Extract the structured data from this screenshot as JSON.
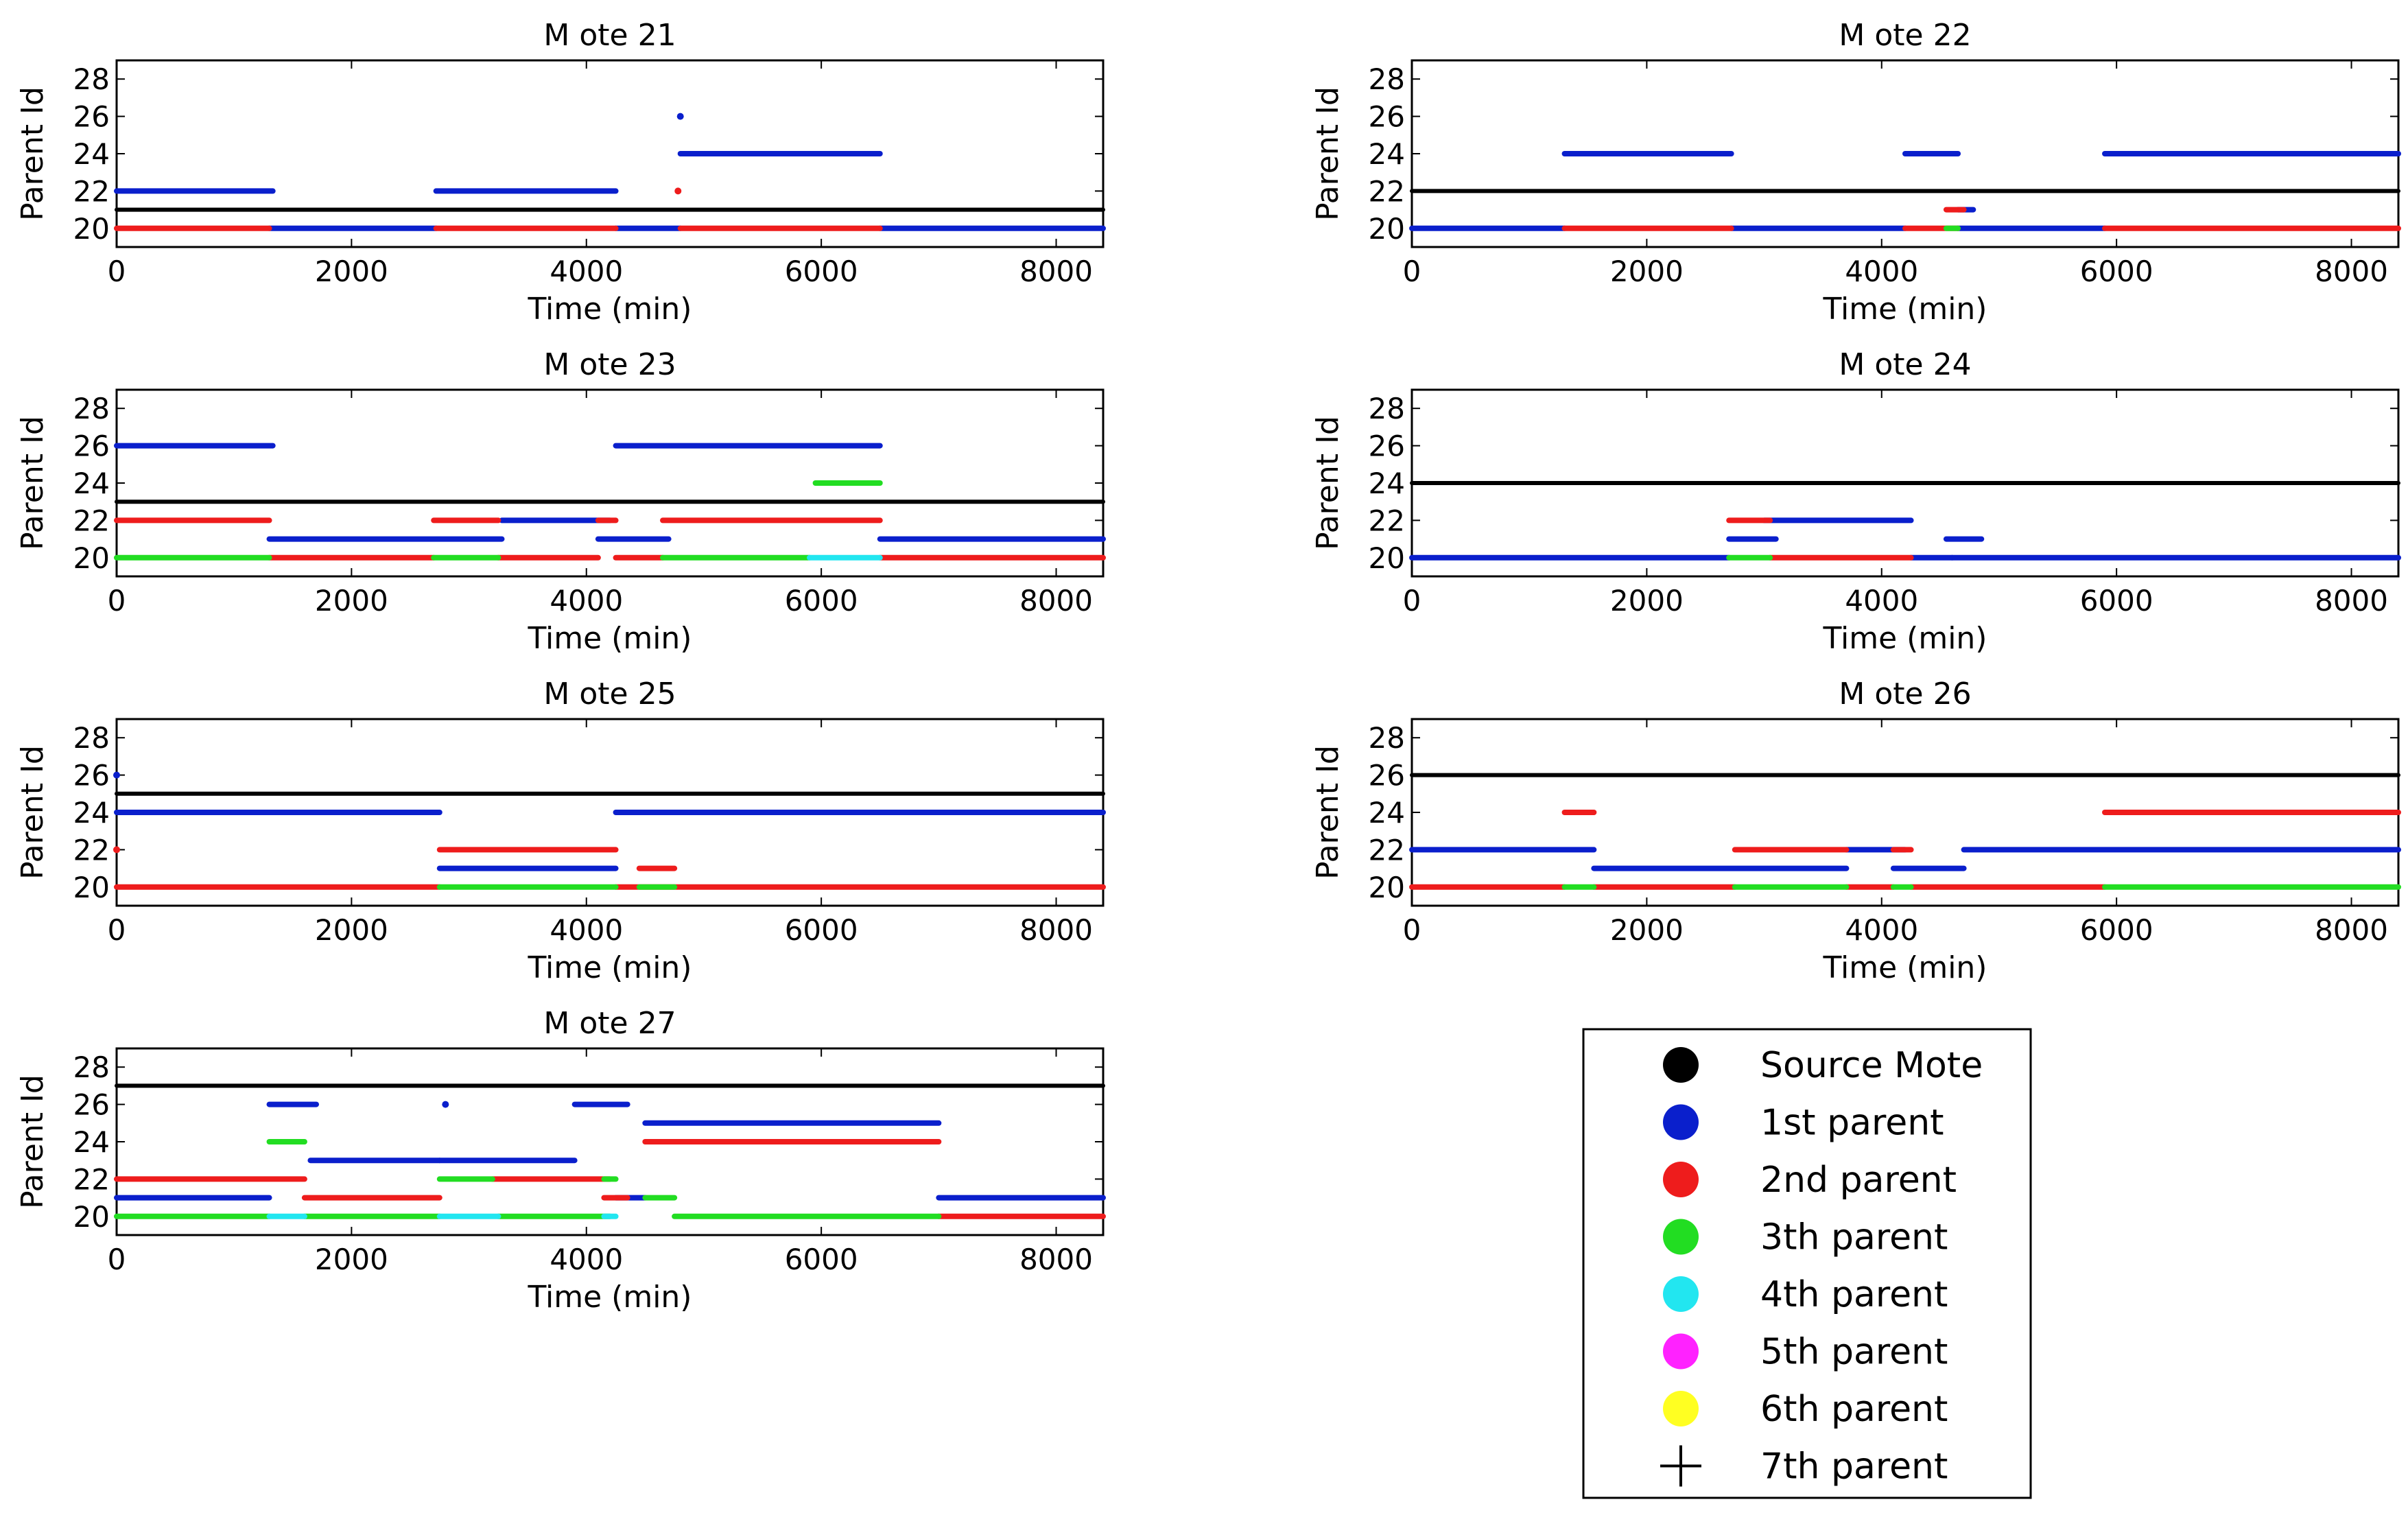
{
  "colors": {
    "source_mote": "#000000",
    "parent_1": "#0a1fcc",
    "parent_2": "#ee1c1c",
    "parent_3": "#22dd22",
    "parent_4": "#22e6f0",
    "parent_5": "#ff22ff",
    "parent_6": "#ffff22",
    "parent_7": "#000000"
  },
  "legend": {
    "items": [
      {
        "label": "Source Mote",
        "marker": "dot",
        "color_key": "source_mote"
      },
      {
        "label": "1st parent",
        "marker": "dot",
        "color_key": "parent_1"
      },
      {
        "label": "2nd parent",
        "marker": "dot",
        "color_key": "parent_2"
      },
      {
        "label": "3th parent",
        "marker": "dot",
        "color_key": "parent_3"
      },
      {
        "label": "4th parent",
        "marker": "dot",
        "color_key": "parent_4"
      },
      {
        "label": "5th parent",
        "marker": "dot",
        "color_key": "parent_5"
      },
      {
        "label": "6th parent",
        "marker": "dot",
        "color_key": "parent_6"
      },
      {
        "label": "7th parent",
        "marker": "plus",
        "color_key": "parent_7"
      }
    ]
  },
  "chart_data": [
    {
      "type": "scatter",
      "title": "M ote 21",
      "xlabel": "Time (min)",
      "ylabel": "Parent Id",
      "xlim": [
        0,
        8400
      ],
      "ylim": [
        19,
        29
      ],
      "xticks": [
        0,
        2000,
        4000,
        6000,
        8000
      ],
      "yticks": [
        20,
        22,
        24,
        26,
        28
      ],
      "source_mote": 21,
      "series": [
        {
          "name": "Source Mote",
          "color_key": "source_mote",
          "segments": [
            [
              0,
              8400,
              21
            ]
          ]
        },
        {
          "name": "1st parent",
          "color_key": "parent_1",
          "segments": [
            [
              0,
              1330,
              22
            ],
            [
              1300,
              2720,
              20
            ],
            [
              2720,
              4250,
              22
            ],
            [
              4250,
              4800,
              20
            ],
            [
              4800,
              6500,
              24
            ],
            [
              6500,
              8400,
              20
            ]
          ],
          "points": [
            [
              4800,
              26
            ]
          ]
        },
        {
          "name": "2nd parent",
          "color_key": "parent_2",
          "segments": [
            [
              0,
              1300,
              20
            ],
            [
              2720,
              4250,
              20
            ],
            [
              4800,
              6500,
              20
            ]
          ],
          "points": [
            [
              4780,
              22
            ]
          ]
        }
      ]
    },
    {
      "type": "scatter",
      "title": "M ote 22",
      "xlabel": "Time (min)",
      "ylabel": "Parent Id",
      "xlim": [
        0,
        8400
      ],
      "ylim": [
        19,
        29
      ],
      "xticks": [
        0,
        2000,
        4000,
        6000,
        8000
      ],
      "yticks": [
        20,
        22,
        24,
        26,
        28
      ],
      "source_mote": 22,
      "series": [
        {
          "name": "Source Mote",
          "color_key": "source_mote",
          "segments": [
            [
              0,
              8400,
              22
            ]
          ]
        },
        {
          "name": "1st parent",
          "color_key": "parent_1",
          "segments": [
            [
              0,
              1300,
              20
            ],
            [
              1300,
              2720,
              24
            ],
            [
              2720,
              4200,
              20
            ],
            [
              4200,
              4650,
              24
            ],
            [
              4650,
              4780,
              21
            ],
            [
              4650,
              5900,
              20
            ],
            [
              5900,
              8400,
              24
            ]
          ]
        },
        {
          "name": "2nd parent",
          "color_key": "parent_2",
          "segments": [
            [
              1300,
              2720,
              20
            ],
            [
              4200,
              4650,
              20
            ],
            [
              4550,
              4700,
              21
            ],
            [
              5900,
              8400,
              20
            ]
          ]
        },
        {
          "name": "3th parent",
          "color_key": "parent_3",
          "segments": [
            [
              4550,
              4650,
              20
            ]
          ]
        }
      ]
    },
    {
      "type": "scatter",
      "title": "M ote 23",
      "xlabel": "Time (min)",
      "ylabel": "Parent Id",
      "xlim": [
        0,
        8400
      ],
      "ylim": [
        19,
        29
      ],
      "xticks": [
        0,
        2000,
        4000,
        6000,
        8000
      ],
      "yticks": [
        20,
        22,
        24,
        26,
        28
      ],
      "source_mote": 23,
      "series": [
        {
          "name": "Source Mote",
          "color_key": "source_mote",
          "segments": [
            [
              0,
              8400,
              23
            ]
          ]
        },
        {
          "name": "1st parent",
          "color_key": "parent_1",
          "segments": [
            [
              0,
              1330,
              26
            ],
            [
              1300,
              3280,
              21
            ],
            [
              3280,
              4200,
              22
            ],
            [
              4100,
              4700,
              21
            ],
            [
              4250,
              6500,
              26
            ],
            [
              6500,
              8400,
              21
            ]
          ]
        },
        {
          "name": "2nd parent",
          "color_key": "parent_2",
          "segments": [
            [
              0,
              1300,
              22
            ],
            [
              1300,
              2700,
              20
            ],
            [
              2700,
              3250,
              22
            ],
            [
              3250,
              4100,
              20
            ],
            [
              4100,
              4250,
              22
            ],
            [
              4250,
              4650,
              20
            ],
            [
              4650,
              6500,
              22
            ],
            [
              6500,
              8400,
              20
            ]
          ]
        },
        {
          "name": "3th parent",
          "color_key": "parent_3",
          "segments": [
            [
              0,
              1300,
              20
            ],
            [
              2700,
              3250,
              20
            ],
            [
              4650,
              5900,
              20
            ],
            [
              5950,
              6500,
              24
            ]
          ]
        },
        {
          "name": "4th parent",
          "color_key": "parent_4",
          "segments": [
            [
              5900,
              6500,
              20
            ]
          ]
        }
      ]
    },
    {
      "type": "scatter",
      "title": "M ote 24",
      "xlabel": "Time (min)",
      "ylabel": "Parent Id",
      "xlim": [
        0,
        8400
      ],
      "ylim": [
        19,
        29
      ],
      "xticks": [
        0,
        2000,
        4000,
        6000,
        8000
      ],
      "yticks": [
        20,
        22,
        24,
        26,
        28
      ],
      "source_mote": 24,
      "series": [
        {
          "name": "Source Mote",
          "color_key": "source_mote",
          "segments": [
            [
              0,
              8400,
              24
            ]
          ]
        },
        {
          "name": "1st parent",
          "color_key": "parent_1",
          "segments": [
            [
              0,
              2700,
              20
            ],
            [
              2700,
              3100,
              21
            ],
            [
              3000,
              4250,
              22
            ],
            [
              4250,
              4600,
              20
            ],
            [
              4550,
              4850,
              21
            ],
            [
              4600,
              8400,
              20
            ]
          ]
        },
        {
          "name": "2nd parent",
          "color_key": "parent_2",
          "segments": [
            [
              2700,
              3050,
              22
            ],
            [
              3050,
              4250,
              20
            ]
          ]
        },
        {
          "name": "3th parent",
          "color_key": "parent_3",
          "segments": [
            [
              2700,
              3050,
              20
            ]
          ]
        }
      ]
    },
    {
      "type": "scatter",
      "title": "M ote 25",
      "xlabel": "Time (min)",
      "ylabel": "Parent Id",
      "xlim": [
        0,
        8400
      ],
      "ylim": [
        19,
        29
      ],
      "xticks": [
        0,
        2000,
        4000,
        6000,
        8000
      ],
      "yticks": [
        20,
        22,
        24,
        26,
        28
      ],
      "source_mote": 25,
      "series": [
        {
          "name": "Source Mote",
          "color_key": "source_mote",
          "segments": [
            [
              0,
              8400,
              25
            ]
          ]
        },
        {
          "name": "1st parent",
          "color_key": "parent_1",
          "segments": [
            [
              0,
              2750,
              24
            ],
            [
              2750,
              4250,
              21
            ],
            [
              4250,
              8400,
              24
            ]
          ],
          "points": [
            [
              0,
              26
            ]
          ]
        },
        {
          "name": "2nd parent",
          "color_key": "parent_2",
          "segments": [
            [
              0,
              2750,
              20
            ],
            [
              2750,
              4250,
              22
            ],
            [
              4450,
              4750,
              21
            ],
            [
              4250,
              8400,
              20
            ]
          ],
          "points": [
            [
              0,
              22
            ]
          ]
        },
        {
          "name": "3th parent",
          "color_key": "parent_3",
          "segments": [
            [
              2750,
              4250,
              20
            ],
            [
              4450,
              4750,
              20
            ]
          ]
        }
      ]
    },
    {
      "type": "scatter",
      "title": "M ote 26",
      "xlabel": "Time (min)",
      "ylabel": "Parent Id",
      "xlim": [
        0,
        8400
      ],
      "ylim": [
        19,
        29
      ],
      "xticks": [
        0,
        2000,
        4000,
        6000,
        8000
      ],
      "yticks": [
        20,
        22,
        24,
        26,
        28
      ],
      "source_mote": 26,
      "series": [
        {
          "name": "Source Mote",
          "color_key": "source_mote",
          "segments": [
            [
              0,
              8400,
              26
            ]
          ]
        },
        {
          "name": "1st parent",
          "color_key": "parent_1",
          "segments": [
            [
              0,
              1550,
              22
            ],
            [
              1550,
              3700,
              21
            ],
            [
              3700,
              4200,
              22
            ],
            [
              4100,
              4700,
              21
            ],
            [
              4700,
              8400,
              22
            ]
          ]
        },
        {
          "name": "2nd parent",
          "color_key": "parent_2",
          "segments": [
            [
              0,
              1300,
              20
            ],
            [
              1300,
              1550,
              24
            ],
            [
              1550,
              2750,
              20
            ],
            [
              2750,
              3700,
              22
            ],
            [
              3700,
              4100,
              20
            ],
            [
              4100,
              4250,
              22
            ],
            [
              4250,
              5900,
              20
            ],
            [
              5900,
              8400,
              24
            ]
          ]
        },
        {
          "name": "3th parent",
          "color_key": "parent_3",
          "segments": [
            [
              1300,
              1550,
              20
            ],
            [
              2750,
              3700,
              20
            ],
            [
              4100,
              4250,
              20
            ],
            [
              5900,
              8400,
              20
            ]
          ]
        }
      ]
    },
    {
      "type": "scatter",
      "title": "M ote 27",
      "xlabel": "Time (min)",
      "ylabel": "Parent Id",
      "xlim": [
        0,
        8400
      ],
      "ylim": [
        19,
        29
      ],
      "xticks": [
        0,
        2000,
        4000,
        6000,
        8000
      ],
      "yticks": [
        20,
        22,
        24,
        26,
        28
      ],
      "source_mote": 27,
      "series": [
        {
          "name": "Source Mote",
          "color_key": "source_mote",
          "segments": [
            [
              0,
              8400,
              27
            ]
          ]
        },
        {
          "name": "1st parent",
          "color_key": "parent_1",
          "segments": [
            [
              0,
              1300,
              21
            ],
            [
              1300,
              1700,
              26
            ],
            [
              1650,
              2750,
              23
            ],
            [
              2750,
              3900,
              23
            ],
            [
              3900,
              4350,
              26
            ],
            [
              4250,
              4500,
              21
            ],
            [
              4500,
              7000,
              25
            ],
            [
              7000,
              8400,
              21
            ]
          ],
          "points": [
            [
              2800,
              26
            ]
          ]
        },
        {
          "name": "2nd parent",
          "color_key": "parent_2",
          "segments": [
            [
              0,
              1600,
              22
            ],
            [
              1600,
              2750,
              21
            ],
            [
              3200,
              4200,
              22
            ],
            [
              4150,
              4350,
              21
            ],
            [
              4500,
              7000,
              24
            ],
            [
              7000,
              8400,
              20
            ]
          ]
        },
        {
          "name": "3th parent",
          "color_key": "parent_3",
          "segments": [
            [
              0,
              1300,
              20
            ],
            [
              1300,
              1600,
              24
            ],
            [
              1600,
              2750,
              20
            ],
            [
              2750,
              3200,
              22
            ],
            [
              3250,
              4200,
              20
            ],
            [
              4150,
              4250,
              22
            ],
            [
              4500,
              4750,
              21
            ],
            [
              4750,
              7000,
              20
            ]
          ]
        },
        {
          "name": "4th parent",
          "color_key": "parent_4",
          "segments": [
            [
              1300,
              1600,
              20
            ],
            [
              2750,
              3250,
              20
            ],
            [
              4150,
              4250,
              20
            ]
          ]
        }
      ]
    }
  ]
}
